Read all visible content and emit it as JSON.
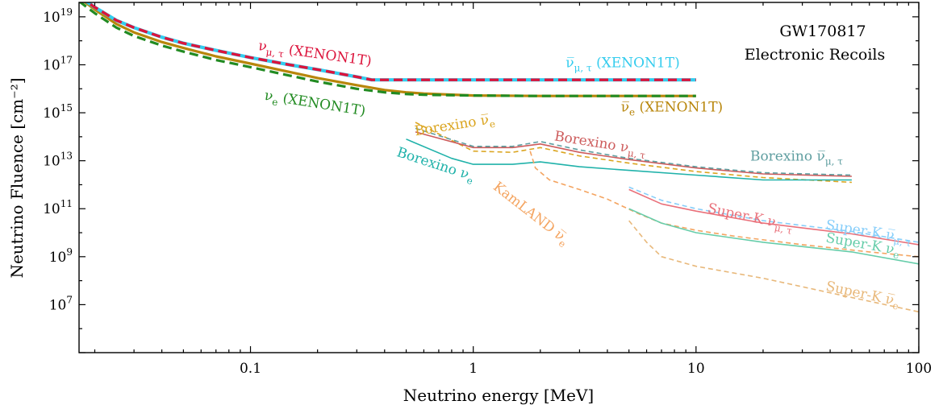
{
  "chart_data": {
    "type": "line",
    "title": "",
    "xlabel": "Neutrino energy [MeV]",
    "ylabel": "Neutrino Fluence [cm⁻²]",
    "xscale": "log",
    "yscale": "log",
    "xlim": [
      0.017,
      100
    ],
    "ylim_log10": [
      5.0,
      19.6
    ],
    "grid": false,
    "legend": "none (curves labelled inline)",
    "x_ticks": [
      {
        "value": 0.1,
        "label": "0.1"
      },
      {
        "value": 1,
        "label": "1"
      },
      {
        "value": 10,
        "label": "10"
      },
      {
        "value": 100,
        "label": "100"
      }
    ],
    "y_ticks": [
      {
        "log10": 7,
        "base": "10",
        "exp": "7"
      },
      {
        "log10": 9,
        "base": "10",
        "exp": "9"
      },
      {
        "log10": 11,
        "base": "10",
        "exp": "11"
      },
      {
        "log10": 13,
        "base": "10",
        "exp": "13"
      },
      {
        "log10": 15,
        "base": "10",
        "exp": "15"
      },
      {
        "log10": 17,
        "base": "10",
        "exp": "17"
      },
      {
        "log10": 19,
        "base": "10",
        "exp": "19"
      }
    ],
    "annotations": [
      "GW170817",
      "Electronic Recoils"
    ],
    "series": [
      {
        "name": "ν̅ₑ (XENON1T)",
        "color": "#b8860b",
        "dash": "solid",
        "width": 3.2,
        "x": [
          0.017,
          0.02,
          0.025,
          0.03,
          0.04,
          0.05,
          0.07,
          0.1,
          0.15,
          0.2,
          0.3,
          0.4,
          0.5,
          0.6,
          1,
          2,
          5,
          10
        ],
        "log10y": [
          19.8,
          19.3,
          18.7,
          18.35,
          17.95,
          17.7,
          17.35,
          17.05,
          16.7,
          16.45,
          16.15,
          15.95,
          15.85,
          15.8,
          15.72,
          15.7,
          15.7,
          15.7
        ],
        "label": {
          "text_parts": [
            [
              "ν̅",
              false
            ],
            [
              "e",
              true
            ],
            [
              " (XENON1T)",
              false
            ]
          ],
          "x": 4.6,
          "log10y": 15.05,
          "rotate": 0
        }
      },
      {
        "name": "νₑ (XENON1T)",
        "color": "#228b22",
        "dash": "dashed",
        "width": 3.2,
        "x": [
          0.017,
          0.02,
          0.025,
          0.03,
          0.04,
          0.05,
          0.07,
          0.1,
          0.15,
          0.2,
          0.3,
          0.4,
          0.5,
          0.6,
          1,
          2,
          5,
          10
        ],
        "log10y": [
          19.65,
          19.15,
          18.55,
          18.2,
          17.8,
          17.55,
          17.2,
          16.9,
          16.55,
          16.3,
          16.0,
          15.85,
          15.78,
          15.75,
          15.72,
          15.7,
          15.7,
          15.7
        ],
        "label": {
          "text_parts": [
            [
              "ν",
              false
            ],
            [
              "e",
              true
            ],
            [
              " (XENON1T)",
              false
            ]
          ],
          "x": 0.115,
          "log10y": 15.55,
          "rotate": 9
        }
      },
      {
        "name": "ν̅μ,τ (XENON1T)",
        "color": "#33ccee",
        "dash": "solid",
        "width": 4.2,
        "x": [
          0.017,
          0.02,
          0.025,
          0.03,
          0.04,
          0.05,
          0.07,
          0.1,
          0.15,
          0.2,
          0.3,
          0.35,
          1,
          5,
          10
        ],
        "log10y": [
          19.85,
          19.4,
          18.85,
          18.55,
          18.15,
          17.9,
          17.6,
          17.3,
          17.0,
          16.8,
          16.5,
          16.37,
          16.37,
          16.37,
          16.37
        ],
        "label": {
          "text_parts": [
            [
              "ν̅",
              false
            ],
            [
              "μ, τ",
              true
            ],
            [
              " (XENON1T)",
              false
            ]
          ],
          "x": 2.6,
          "log10y": 16.9,
          "rotate": 0
        }
      },
      {
        "name": "νμ,τ (XENON1T)",
        "color": "#dc143c",
        "dash": "dashed",
        "width": 3.4,
        "x": [
          0.017,
          0.02,
          0.025,
          0.03,
          0.04,
          0.05,
          0.07,
          0.1,
          0.15,
          0.2,
          0.3,
          0.35,
          1,
          5,
          10
        ],
        "log10y": [
          19.85,
          19.4,
          18.85,
          18.55,
          18.15,
          17.9,
          17.6,
          17.3,
          17.0,
          16.8,
          16.5,
          16.37,
          16.37,
          16.37,
          16.37
        ],
        "label": {
          "text_parts": [
            [
              "ν",
              false
            ],
            [
              "μ, τ",
              true
            ],
            [
              " (XENON1T)",
              false
            ]
          ],
          "x": 0.108,
          "log10y": 17.62,
          "rotate": 8
        }
      },
      {
        "name": "Borexino ν̅ₑ",
        "color": "#dba520",
        "dash": "dashed",
        "width": 1.6,
        "x": [
          0.55,
          1.0,
          1.5,
          2.0,
          3.0,
          5.0,
          10,
          20,
          50
        ],
        "log10y": [
          14.6,
          13.4,
          13.35,
          13.55,
          13.2,
          12.9,
          12.55,
          12.3,
          12.1
        ],
        "label": {
          "text_parts": [
            [
              "Borexino ",
              false
            ],
            [
              "ν̅",
              false
            ],
            [
              "e",
              true
            ]
          ],
          "x": 0.55,
          "log10y": 14.05,
          "rotate": -9
        }
      },
      {
        "name": "Borexino νμ,τ",
        "color": "#cd5c5c",
        "dash": "solid",
        "width": 1.6,
        "x": [
          0.55,
          1.0,
          1.5,
          2.0,
          3.0,
          5.0,
          10,
          20,
          50
        ],
        "log10y": [
          14.2,
          13.55,
          13.55,
          13.7,
          13.35,
          13.05,
          12.7,
          12.45,
          12.35
        ],
        "label": {
          "text_parts": [
            [
              "Borexino ",
              false
            ],
            [
              "ν",
              false
            ],
            [
              "μ, τ",
              true
            ]
          ],
          "x": 2.3,
          "log10y": 13.85,
          "rotate": 9
        }
      },
      {
        "name": "Borexino ν̅μ,τ",
        "color": "#5f9ea0",
        "dash": "dashed",
        "width": 1.6,
        "x": [
          0.55,
          1.0,
          1.5,
          2.0,
          3.0,
          5.0,
          10,
          20,
          50
        ],
        "log10y": [
          14.35,
          13.6,
          13.6,
          13.8,
          13.45,
          13.1,
          12.75,
          12.5,
          12.4
        ],
        "label": {
          "text_parts": [
            [
              "Borexino ",
              false
            ],
            [
              "ν̅",
              false
            ],
            [
              "μ, τ",
              true
            ]
          ],
          "x": 17.5,
          "log10y": 13.0,
          "rotate": 0
        }
      },
      {
        "name": "Borexino νₑ",
        "color": "#20b2aa",
        "dash": "solid",
        "width": 1.6,
        "x": [
          0.5,
          0.8,
          1.0,
          1.5,
          2.0,
          3.0,
          5.0,
          10,
          20,
          50
        ],
        "log10y": [
          13.9,
          13.1,
          12.85,
          12.85,
          12.95,
          12.75,
          12.6,
          12.4,
          12.2,
          12.2
        ],
        "label": {
          "text_parts": [
            [
              "Borexino ",
              false
            ],
            [
              "ν",
              false
            ],
            [
              "e",
              true
            ]
          ],
          "x": 0.45,
          "log10y": 13.2,
          "rotate": 18
        }
      },
      {
        "name": "KamLAND ν̅ₑ",
        "color": "#f4a460",
        "dash": "dashed",
        "width": 1.6,
        "x": [
          1.8,
          1.9,
          2.2,
          3.0,
          4.0,
          5.5,
          7.0,
          10,
          15,
          30,
          60,
          100
        ],
        "log10y": [
          13.4,
          12.7,
          12.2,
          11.8,
          11.4,
          10.8,
          10.4,
          10.1,
          9.85,
          9.5,
          9.2,
          9.0
        ],
        "label": {
          "text_parts": [
            [
              "KamLAND ",
              false
            ],
            [
              "ν̅",
              false
            ],
            [
              "e",
              true
            ]
          ],
          "x": 1.22,
          "log10y": 11.85,
          "rotate": 38
        }
      },
      {
        "name": "Super-K ν̅ₑ",
        "color": "#e8b87a",
        "dash": "dashed",
        "width": 1.6,
        "x": [
          5,
          6,
          7,
          10,
          20,
          50,
          100
        ],
        "log10y": [
          10.5,
          9.6,
          9.0,
          8.6,
          8.1,
          7.3,
          6.7
        ],
        "label": {
          "text_parts": [
            [
              "Super-K ",
              false
            ],
            [
              "ν̅",
              false
            ],
            [
              "e",
              true
            ]
          ],
          "x": 38,
          "log10y": 7.6,
          "rotate": 12
        }
      },
      {
        "name": "Super-K νₑ",
        "color": "#66cdaa",
        "dash": "solid",
        "width": 1.6,
        "x": [
          5,
          7,
          10,
          20,
          50,
          100
        ],
        "log10y": [
          11.0,
          10.4,
          10.0,
          9.6,
          9.2,
          8.7
        ],
        "label": {
          "text_parts": [
            [
              "Super-K ",
              false
            ],
            [
              "ν",
              false
            ],
            [
              "e",
              true
            ]
          ],
          "x": 38,
          "log10y": 9.62,
          "rotate": 10
        }
      },
      {
        "name": "Super-K νμ,τ",
        "color": "#e9707a",
        "dash": "solid",
        "width": 1.6,
        "x": [
          5,
          7,
          10,
          20,
          50,
          100
        ],
        "log10y": [
          11.8,
          11.2,
          10.9,
          10.4,
          9.95,
          9.5
        ],
        "label": {
          "text_parts": [
            [
              "Super-K ",
              false
            ],
            [
              "ν",
              false
            ],
            [
              "μ, τ",
              true
            ]
          ],
          "x": 11.2,
          "log10y": 10.85,
          "rotate": 12
        }
      },
      {
        "name": "Super-K ν̅μ,τ",
        "color": "#87cefa",
        "dash": "dashed",
        "width": 1.6,
        "x": [
          5,
          7,
          10,
          20,
          50,
          100
        ],
        "log10y": [
          11.9,
          11.35,
          11.0,
          10.5,
          10.05,
          9.6
        ],
        "label": {
          "text_parts": [
            [
              "Super-K ",
              false
            ],
            [
              "ν̅",
              false
            ],
            [
              "μ, τ",
              true
            ]
          ],
          "x": 38,
          "log10y": 10.15,
          "rotate": 9
        }
      }
    ]
  }
}
